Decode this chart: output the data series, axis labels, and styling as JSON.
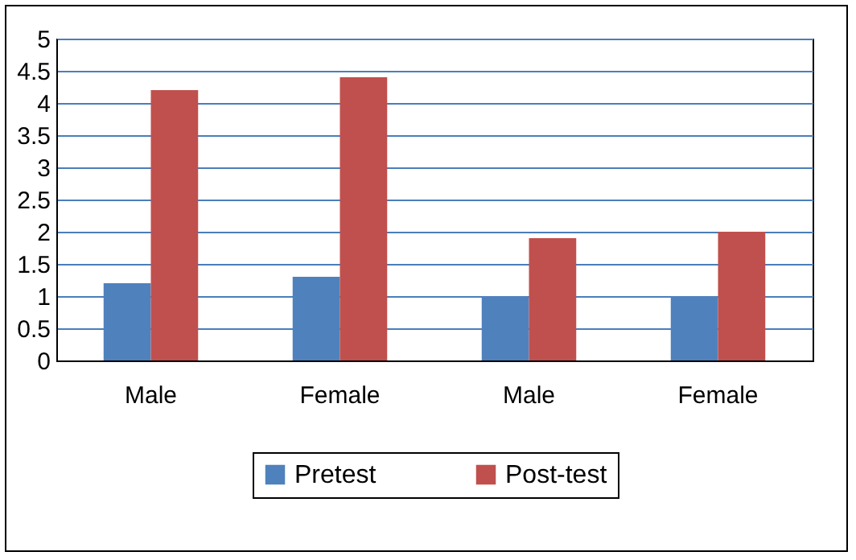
{
  "chart_data": {
    "type": "bar",
    "categories": [
      "Male",
      "Female",
      "Male",
      "Female"
    ],
    "series": [
      {
        "name": "Pretest",
        "color": "#4f81bd",
        "values": [
          1.2,
          1.3,
          1.0,
          1.0
        ]
      },
      {
        "name": "Post-test",
        "color": "#c0504d",
        "values": [
          4.2,
          4.4,
          1.9,
          2.0
        ]
      }
    ],
    "ylim": [
      0,
      5
    ],
    "yticks": [
      0,
      0.5,
      1,
      1.5,
      2,
      2.5,
      3,
      3.5,
      4,
      4.5,
      5
    ],
    "grid": "y",
    "legend": "bottom"
  }
}
